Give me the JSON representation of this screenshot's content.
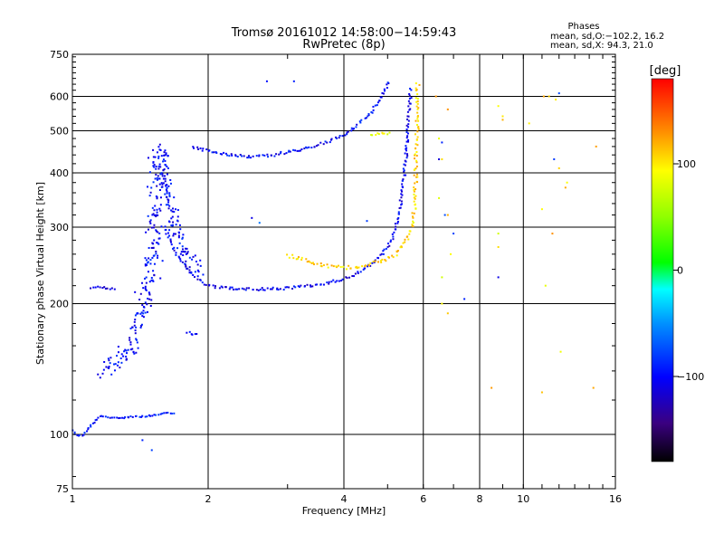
{
  "title": {
    "line1": "Tromsø 20161012 14:58:00−14:59:43",
    "line2": "RwPretec (8p)"
  },
  "phases": {
    "heading": "Phases",
    "line_o": "mean, sd,O:−102.2, 16.2",
    "line_x": "mean, sd,X:  94.3, 21.0"
  },
  "colorbar": {
    "unit": "[deg]",
    "ticks": [
      "100",
      "0",
      "−100"
    ],
    "tick_values": [
      100,
      0,
      -100
    ],
    "range": [
      -180,
      180
    ]
  },
  "chart_data": {
    "type": "scatter",
    "xlabel": "Frequency [MHz]",
    "ylabel": "Stationary phase Virtual Height [km]",
    "xscale": "log",
    "yscale": "log",
    "xlim": [
      1,
      16
    ],
    "ylim": [
      75,
      750
    ],
    "xticks": [
      "1",
      "2",
      "4",
      "6",
      "8",
      "10",
      "16"
    ],
    "xtick_values": [
      1,
      2,
      4,
      6,
      8,
      10,
      16
    ],
    "yticks": [
      "75",
      "100",
      "200",
      "300",
      "400",
      "500",
      "600",
      "750"
    ],
    "ytick_values": [
      75,
      100,
      200,
      300,
      400,
      500,
      600,
      750
    ],
    "grid": true,
    "traces": [
      {
        "points": [
          [
            1.0,
            102
          ],
          [
            1.03,
            99
          ],
          [
            1.06,
            100
          ],
          [
            1.1,
            105
          ],
          [
            1.15,
            110
          ],
          [
            1.25,
            109
          ],
          [
            1.35,
            110
          ],
          [
            1.45,
            110
          ],
          [
            1.55,
            111
          ],
          [
            1.65,
            112
          ],
          [
            1.7,
            111
          ]
        ],
        "phase": -95,
        "spread": 2
      },
      {
        "points": [
          [
            1.15,
            142
          ],
          [
            1.22,
            145
          ],
          [
            1.3,
            152
          ],
          [
            1.36,
            160
          ],
          [
            1.4,
            175
          ],
          [
            1.44,
            190
          ],
          [
            1.47,
            220
          ],
          [
            1.5,
            260
          ],
          [
            1.52,
            300
          ],
          [
            1.54,
            350
          ],
          [
            1.55,
            400
          ],
          [
            1.56,
            440
          ],
          [
            1.57,
            470
          ]
        ],
        "phase": -100,
        "spread": 14
      },
      {
        "points": [
          [
            1.1,
            218
          ],
          [
            1.15,
            218
          ],
          [
            1.2,
            217
          ],
          [
            1.25,
            216
          ]
        ],
        "phase": -110,
        "spread": 2
      },
      {
        "points": [
          [
            1.56,
            450
          ],
          [
            1.58,
            420
          ],
          [
            1.62,
            380
          ],
          [
            1.66,
            340
          ],
          [
            1.7,
            300
          ],
          [
            1.76,
            270
          ],
          [
            1.82,
            250
          ],
          [
            1.9,
            235
          ]
        ],
        "phase": -100,
        "spread": 12
      },
      {
        "points": [
          [
            1.6,
            300
          ],
          [
            1.7,
            260
          ],
          [
            1.8,
            240
          ],
          [
            1.9,
            228
          ],
          [
            2.0,
            220
          ],
          [
            2.2,
            217
          ],
          [
            2.5,
            216
          ],
          [
            3.0,
            217
          ],
          [
            3.5,
            221
          ],
          [
            4.0,
            228
          ],
          [
            4.4,
            238
          ],
          [
            4.8,
            255
          ],
          [
            5.1,
            280
          ],
          [
            5.3,
            320
          ],
          [
            5.4,
            370
          ],
          [
            5.5,
            440
          ],
          [
            5.55,
            520
          ],
          [
            5.6,
            580
          ],
          [
            5.62,
            630
          ]
        ],
        "phase": -105,
        "spread": 3
      },
      {
        "points": [
          [
            1.8,
            172
          ],
          [
            1.85,
            170
          ],
          [
            1.9,
            171
          ]
        ],
        "phase": -110,
        "spread": 2
      },
      {
        "points": [
          [
            1.85,
            458
          ],
          [
            2.0,
            450
          ],
          [
            2.2,
            440
          ],
          [
            2.5,
            435
          ],
          [
            2.8,
            440
          ],
          [
            3.0,
            447
          ],
          [
            3.3,
            455
          ],
          [
            3.6,
            468
          ],
          [
            4.0,
            490
          ],
          [
            4.3,
            515
          ],
          [
            4.6,
            550
          ],
          [
            4.8,
            590
          ],
          [
            4.95,
            625
          ],
          [
            5.02,
            655
          ]
        ],
        "phase": -100,
        "spread": 3
      },
      {
        "points": [
          [
            3.0,
            258
          ],
          [
            3.3,
            252
          ],
          [
            3.6,
            245
          ],
          [
            4.0,
            242
          ],
          [
            4.4,
            244
          ],
          [
            4.8,
            250
          ],
          [
            5.2,
            260
          ],
          [
            5.4,
            272
          ],
          [
            5.6,
            290
          ],
          [
            5.7,
            315
          ],
          [
            5.75,
            350
          ],
          [
            5.78,
            400
          ],
          [
            5.8,
            470
          ],
          [
            5.82,
            540
          ],
          [
            5.83,
            620
          ],
          [
            5.84,
            650
          ]
        ],
        "phase": 105,
        "spread": 4
      },
      {
        "points": [
          [
            4.6,
            490
          ],
          [
            4.9,
            492
          ],
          [
            5.1,
            495
          ]
        ],
        "phase": 95,
        "spread": 3
      },
      {
        "points": [
          [
            6.4,
            600
          ],
          [
            6.5,
            480
          ],
          [
            6.6,
            430
          ],
          [
            6.8,
            560
          ],
          [
            6.5,
            350
          ],
          [
            6.9,
            260
          ],
          [
            6.6,
            230
          ],
          [
            6.6,
            200
          ],
          [
            6.8,
            190
          ],
          [
            6.8,
            320
          ],
          [
            8.8,
            290
          ],
          [
            8.8,
            270
          ],
          [
            9.0,
            530
          ],
          [
            11.1,
            600
          ],
          [
            11.4,
            600
          ],
          [
            11.8,
            590
          ],
          [
            12.0,
            410
          ],
          [
            11.6,
            290
          ],
          [
            11.2,
            220
          ],
          [
            11.0,
            330
          ],
          [
            8.5,
            128
          ],
          [
            11.0,
            125
          ],
          [
            14.3,
            128
          ],
          [
            14.5,
            460
          ],
          [
            12.5,
            380
          ],
          [
            8.8,
            570
          ],
          [
            9.0,
            540
          ],
          [
            10.3,
            520
          ],
          [
            12.1,
            155
          ],
          [
            12.4,
            370
          ]
        ],
        "phase": 100,
        "spread": 0,
        "scatter": true
      },
      {
        "points": [
          [
            2.7,
            650
          ],
          [
            3.1,
            650
          ],
          [
            2.5,
            315
          ],
          [
            2.6,
            307
          ],
          [
            1.43,
            97
          ],
          [
            1.5,
            92
          ],
          [
            6.6,
            470
          ],
          [
            6.7,
            320
          ],
          [
            6.5,
            430
          ],
          [
            7.0,
            290
          ],
          [
            8.8,
            230
          ],
          [
            11.7,
            430
          ],
          [
            4.5,
            310
          ],
          [
            7.4,
            205
          ],
          [
            12.0,
            610
          ]
        ],
        "phase": -90,
        "spread": 0,
        "scatter": true
      }
    ]
  }
}
